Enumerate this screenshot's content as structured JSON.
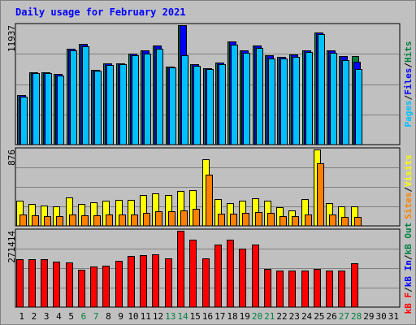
{
  "chart_data": {
    "type": "bar",
    "title": "Daily usage for February 2021",
    "categories": [
      "1",
      "2",
      "3",
      "4",
      "5",
      "6",
      "7",
      "8",
      "9",
      "10",
      "11",
      "12",
      "13",
      "14",
      "15",
      "16",
      "17",
      "18",
      "19",
      "20",
      "21",
      "22",
      "23",
      "24",
      "25",
      "26",
      "27",
      "28",
      "29",
      "30",
      "31"
    ],
    "weekend_days": [
      "6",
      "7",
      "13",
      "14",
      "20",
      "21",
      "27",
      "28"
    ],
    "panels": [
      {
        "max_label": "11937",
        "ylim": [
          0,
          11937
        ],
        "axis_label": [
          {
            "text": "Pages",
            "color": "#00c0ff"
          },
          {
            "text": "Files",
            "color": "#0000ff"
          },
          {
            "text": "Hits",
            "color": "#008040"
          }
        ],
        "series": [
          {
            "name": "Hits",
            "color": "#008040",
            "values": [
              4920,
              7220,
              7250,
              7030,
              9560,
              10050,
              7460,
              8120,
              8150,
              9090,
              9460,
              9880,
              7830,
              11937,
              8020,
              7640,
              8180,
              10320,
              9450,
              9910,
              8900,
              8770,
              9050,
              9410,
              11170,
              9390,
              8840,
              8820,
              0,
              0,
              0
            ]
          },
          {
            "name": "Files",
            "color": "#0000ff",
            "values": [
              4920,
              7220,
              7250,
              7030,
              9560,
              10050,
              7460,
              8120,
              8150,
              9090,
              9460,
              9880,
              7830,
              11937,
              8020,
              7640,
              8180,
              10320,
              9450,
              9910,
              8900,
              8770,
              9050,
              9410,
              11170,
              9390,
              8840,
              8320,
              0,
              0,
              0
            ]
          },
          {
            "name": "Pages",
            "color": "#00c0ff",
            "values": [
              4800,
              7150,
              7150,
              6930,
              9390,
              9840,
              7350,
              7990,
              8050,
              8930,
              9130,
              9600,
              7700,
              8950,
              7880,
              7530,
              8040,
              9950,
              9180,
              9640,
              8630,
              8610,
              8810,
              9220,
              11020,
              9160,
              8470,
              7560,
              0,
              0,
              0
            ]
          }
        ]
      },
      {
        "max_label": "876",
        "ylim": [
          0,
          876
        ],
        "axis_label": [
          {
            "text": "Sites",
            "color": "#ff8000"
          },
          {
            "text": "Visits",
            "color": "#ffff00"
          }
        ],
        "series": [
          {
            "name": "Visits",
            "color": "#ffff00",
            "values": [
              290,
              250,
              230,
              225,
              330,
              250,
              270,
              290,
              300,
              300,
              350,
              375,
              350,
              405,
              410,
              765,
              310,
              260,
              290,
              320,
              290,
              210,
              175,
              305,
              876,
              265,
              225,
              225,
              0,
              0,
              0
            ]
          },
          {
            "name": "Sites",
            "color": "#ff8000",
            "values": [
              135,
              120,
              110,
              110,
              130,
              120,
              120,
              130,
              135,
              135,
              150,
              165,
              165,
              180,
              200,
              590,
              140,
              140,
              145,
              160,
              145,
              110,
              115,
              130,
              715,
              130,
              105,
              100,
              0,
              0,
              0
            ]
          }
        ]
      },
      {
        "max_label": "271414",
        "ylim": [
          0,
          271414
        ],
        "axis_label": [
          {
            "text": "kB F",
            "color": "#ff0000"
          },
          {
            "text": "kB In",
            "color": "#0000ff"
          },
          {
            "text": "kB Out",
            "color": "#008040"
          }
        ],
        "series": [
          {
            "name": "kB F",
            "color": "#ff0000",
            "values": [
              170000,
              170000,
              169000,
              162000,
              158000,
              134000,
              144000,
              146000,
              165000,
              182000,
              186000,
              187000,
              174000,
              271414,
              239000,
              174000,
              221000,
              240000,
              207000,
              223000,
              136000,
              129000,
              130000,
              131000,
              135000,
              129000,
              131000,
              157000,
              0,
              0,
              0
            ]
          }
        ]
      }
    ]
  }
}
